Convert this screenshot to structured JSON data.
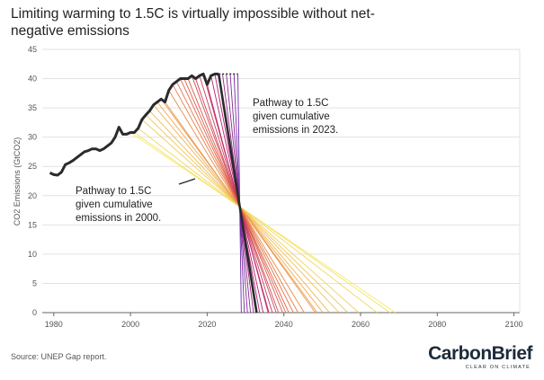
{
  "chart_data": {
    "type": "line",
    "title": [
      "Limiting warming to 1.5C is virtually impossible without net-",
      "negative emissions"
    ],
    "y_label": "CO2 Emissions (GtCO2)",
    "source": "Source: UNEP Gap report.",
    "logo": "CarbonBrief",
    "logo_tagline": "CLEAR ON CLIMATE",
    "xlim": [
      1977,
      2101.5
    ],
    "ylim": [
      0,
      45
    ],
    "xticks": [
      1980,
      2000,
      2020,
      2040,
      2060,
      2080,
      2100
    ],
    "yticks": [
      0,
      5,
      10,
      15,
      20,
      25,
      30,
      35,
      40,
      45
    ],
    "grid": true,
    "history": {
      "color": "#2b2b2b",
      "x": [
        1979,
        1980,
        1981,
        1982,
        1983,
        1984,
        1985,
        1986,
        1987,
        1988,
        1989,
        1990,
        1991,
        1992,
        1993,
        1994,
        1995,
        1996,
        1997,
        1998,
        1999,
        2000,
        2001,
        2002,
        2003,
        2004,
        2005,
        2006,
        2007,
        2008,
        2009,
        2010,
        2011,
        2012,
        2013,
        2014,
        2015,
        2016,
        2017,
        2018,
        2019,
        2020,
        2021,
        2022,
        2023
      ],
      "values": [
        23.9,
        23.6,
        23.5,
        24,
        25.3,
        25.6,
        26,
        26.5,
        27,
        27.5,
        27.7,
        28,
        28,
        27.7,
        28,
        28.5,
        29,
        30,
        31.7,
        30.5,
        30.5,
        30.8,
        30.8,
        31.5,
        33,
        33.8,
        34.5,
        35.5,
        36,
        36.5,
        36,
        38,
        39,
        39.5,
        40,
        40,
        40,
        40.5,
        40,
        40.5,
        40.8,
        39,
        40.5,
        40.8,
        40.8
      ]
    },
    "flat": {
      "color": "#2b2b2b",
      "x": [
        2023,
        2028
      ],
      "values": [
        40.8,
        40.8
      ]
    },
    "pathway_colors": [
      "#f3ea6a",
      "#f0a94a",
      "#e0604a",
      "#b8226f",
      "#6a2aa8"
    ],
    "pathways": [
      {
        "x": [
          2000,
          2069.1
        ],
        "values": [
          30.8,
          0
        ]
      },
      {
        "x": [
          2001,
          2067.7
        ],
        "values": [
          30.8,
          0
        ]
      },
      {
        "x": [
          2002,
          2064.3
        ],
        "values": [
          31.5,
          0
        ]
      },
      {
        "x": [
          2003,
          2059.5
        ],
        "values": [
          33,
          0
        ]
      },
      {
        "x": [
          2004,
          2056.7
        ],
        "values": [
          33.8,
          0
        ]
      },
      {
        "x": [
          2005,
          2054.4
        ],
        "values": [
          34.5,
          0
        ]
      },
      {
        "x": [
          2006,
          2051.9
        ],
        "values": [
          35.5,
          0
        ]
      },
      {
        "x": [
          2007,
          2050.2
        ],
        "values": [
          36,
          0
        ]
      },
      {
        "x": [
          2008,
          2048.7
        ],
        "values": [
          36.5,
          0
        ]
      },
      {
        "x": [
          2009,
          2048.2
        ],
        "values": [
          36,
          0
        ]
      },
      {
        "x": [
          2010,
          2045.3
        ],
        "values": [
          38,
          0
        ]
      },
      {
        "x": [
          2011,
          2043.7
        ],
        "values": [
          39,
          0
        ]
      },
      {
        "x": [
          2012,
          2042.5
        ],
        "values": [
          39.5,
          0
        ]
      },
      {
        "x": [
          2013,
          2041.3
        ],
        "values": [
          40,
          0
        ]
      },
      {
        "x": [
          2014,
          2040.5
        ],
        "values": [
          40,
          0
        ]
      },
      {
        "x": [
          2015,
          2039.7
        ],
        "values": [
          40,
          0
        ]
      },
      {
        "x": [
          2016,
          2038.6
        ],
        "values": [
          40.5,
          0
        ]
      },
      {
        "x": [
          2017,
          2038.0
        ],
        "values": [
          40,
          0
        ]
      },
      {
        "x": [
          2018,
          2037.0
        ],
        "values": [
          40.5,
          0
        ]
      },
      {
        "x": [
          2019,
          2036.1
        ],
        "values": [
          40.8,
          0
        ]
      },
      {
        "x": [
          2020,
          2035.9
        ],
        "values": [
          39,
          0
        ]
      },
      {
        "x": [
          2021,
          2034.6
        ],
        "values": [
          40.5,
          0
        ]
      },
      {
        "x": [
          2022,
          2033.7
        ],
        "values": [
          40.8,
          0
        ]
      },
      {
        "x": [
          2024,
          2032.1
        ],
        "values": [
          40.8,
          0
        ]
      },
      {
        "x": [
          2025,
          2031.3
        ],
        "values": [
          40.8,
          0
        ]
      },
      {
        "x": [
          2026,
          2030.5
        ],
        "values": [
          40.8,
          0
        ]
      },
      {
        "x": [
          2027,
          2029.7
        ],
        "values": [
          40.8,
          0
        ]
      },
      {
        "x": [
          2028,
          2028.9
        ],
        "values": [
          40.8,
          0
        ]
      },
      {
        "x": [
          2023,
          2032.9
        ],
        "values": [
          40.8,
          0
        ],
        "color": "#2b2b2b"
      }
    ],
    "annotations": [
      {
        "lines": [
          "Pathway to 1.5C",
          "given cumulative",
          "emissions in 2023."
        ]
      },
      {
        "lines": [
          "Pathway to 1.5C",
          "given cumulative",
          "emissions in 2000."
        ]
      }
    ]
  }
}
